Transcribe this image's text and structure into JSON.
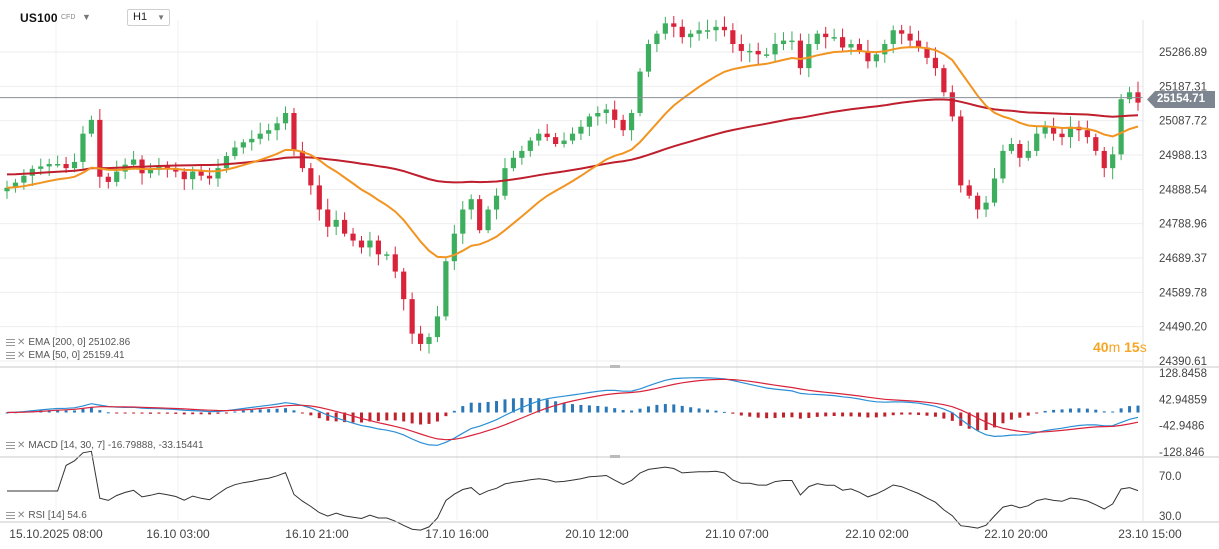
{
  "header": {
    "symbol": "US100",
    "symbol_type": "CFD",
    "timeframe": "H1"
  },
  "price_axis": [
    "25286.89",
    "25187.31",
    "25087.72",
    "24988.13",
    "24888.54",
    "24788.96",
    "24689.37",
    "24589.78",
    "24490.20",
    "24390.61"
  ],
  "macd_axis": [
    "128.8458",
    "42.94859",
    "-42.9486",
    "-128.846"
  ],
  "rsi_axis": [
    "70.0",
    "30.0"
  ],
  "time_axis": [
    "15.10.2025 08:00",
    "16.10 03:00",
    "16.10 21:00",
    "17.10 16:00",
    "20.10 12:00",
    "21.10 07:00",
    "22.10 02:00",
    "22.10 20:00",
    "23.10 15:00"
  ],
  "current_price": "25154.71",
  "countdown": {
    "min": "40",
    "min_unit": "m",
    "sec": "15",
    "sec_unit": "s"
  },
  "legends": {
    "ema200": "EMA [200, 0] 25102.86",
    "ema50": "EMA [50, 0] 25159.41",
    "macd": "MACD [14, 30, 7] -16.79888, -33.15441",
    "rsi": "RSI [14] 54.6"
  },
  "colors": {
    "up": "#3cae5e",
    "down": "#d9233b",
    "ema50": "#f29421",
    "ema200": "#bf1e2d",
    "macd_line": "#2a8fd4",
    "signal_line": "#d9233b",
    "hist_pos": "#2a77b8",
    "hist_neg": "#c0222d",
    "rsi": "#333333"
  },
  "chart_data": [
    {
      "type": "candlestick",
      "title": "US100 CFD H1",
      "ylim": [
        24390.61,
        25286.89
      ],
      "current_price": 25154.71,
      "x_ticks": [
        "15.10.2025 08:00",
        "16.10 03:00",
        "16.10 21:00",
        "17.10 16:00",
        "20.10 12:00",
        "21.10 07:00",
        "22.10 02:00",
        "22.10 20:00",
        "23.10 15:00"
      ],
      "closes": [
        24893,
        24908,
        24928,
        24948,
        24955,
        24962,
        24962,
        24950,
        24968,
        25050,
        25090,
        24925,
        24910,
        24940,
        24960,
        24975,
        24935,
        24945,
        24958,
        24950,
        24940,
        24918,
        24940,
        24928,
        24920,
        24950,
        24985,
        25010,
        25025,
        25035,
        25050,
        25060,
        25080,
        25110,
        25000,
        24950,
        24900,
        24830,
        24780,
        24800,
        24760,
        24740,
        24720,
        24740,
        24700,
        24700,
        24650,
        24570,
        24470,
        24440,
        24460,
        24520,
        24680,
        24760,
        24830,
        24860,
        24770,
        24830,
        24870,
        24950,
        24980,
        25000,
        25030,
        25050,
        25040,
        25020,
        25030,
        25050,
        25070,
        25100,
        25110,
        25120,
        25090,
        25060,
        25110,
        25230,
        25310,
        25340,
        25370,
        25360,
        25330,
        25340,
        25350,
        25350,
        25360,
        25350,
        25310,
        25290,
        25290,
        25280,
        25280,
        25310,
        25320,
        25320,
        25240,
        25310,
        25340,
        25330,
        25330,
        25300,
        25310,
        25290,
        25260,
        25280,
        25310,
        25350,
        25340,
        25320,
        25300,
        25270,
        25240,
        25170,
        25100,
        24900,
        24870,
        24830,
        24850,
        24920,
        25000,
        25020,
        24980,
        25000,
        25050,
        25070,
        25050,
        25040,
        25070,
        25060,
        25040,
        25000,
        24950,
        24990,
        25150,
        25170,
        25140
      ]
    },
    {
      "type": "line",
      "title": "MACD [14, 30, 7]",
      "ylim": [
        -128.846,
        128.8458
      ],
      "series": [
        {
          "name": "MACD",
          "last": -16.79888
        },
        {
          "name": "Signal",
          "last": -33.15441
        }
      ]
    },
    {
      "type": "line",
      "title": "RSI [14]",
      "ylim": [
        30,
        70
      ],
      "series": [
        {
          "name": "RSI",
          "last": 54.6
        }
      ]
    }
  ]
}
